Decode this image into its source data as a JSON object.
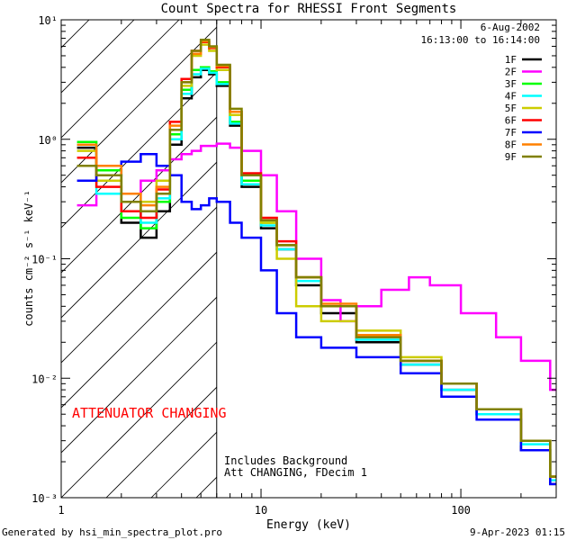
{
  "chart_data": {
    "type": "line",
    "title": "Count Spectra for RHESSI Front Segments",
    "xlabel": "Energy (keV)",
    "ylabel": "counts cm⁻² s⁻¹ keV⁻¹",
    "xscale": "log",
    "yscale": "log",
    "xlim": [
      1,
      300
    ],
    "ylim": [
      0.001,
      10
    ],
    "x_ticks": [
      {
        "value": 1,
        "label": "1"
      },
      {
        "value": 10,
        "label": "10"
      },
      {
        "value": 100,
        "label": "100"
      }
    ],
    "y_ticks": [
      {
        "value": 0.001,
        "label": "10⁻³"
      },
      {
        "value": 0.01,
        "label": "10⁻²"
      },
      {
        "value": 0.1,
        "label": "10⁻¹"
      },
      {
        "value": 1,
        "label": "10⁰"
      },
      {
        "value": 10,
        "label": "10¹"
      }
    ],
    "legend_header": [
      "6-Aug-2002",
      "16:13:00 to 16:14:00"
    ],
    "legend_position": "top-right",
    "attenuator_energy_keV": 6,
    "attenuator_label": "ATTENUATOR CHANGING",
    "annotations": [
      "Includes Background",
      "Att CHANGING, FDecim 1"
    ],
    "footer_left": "Generated by hsi_min_spectra_plot.pro",
    "footer_right": "9-Apr-2023 01:15",
    "series": [
      {
        "name": "1F",
        "color": "#000000",
        "x": [
          1.2,
          1.5,
          2,
          2.5,
          3,
          3.5,
          4,
          4.5,
          5,
          5.5,
          6,
          7,
          8,
          10,
          12,
          15,
          20,
          30,
          50,
          80,
          120,
          200,
          280
        ],
        "y": [
          0.85,
          0.5,
          0.2,
          0.15,
          0.25,
          0.9,
          2.2,
          3.3,
          3.8,
          3.5,
          2.8,
          1.3,
          0.4,
          0.18,
          0.12,
          0.06,
          0.035,
          0.02,
          0.013,
          0.008,
          0.005,
          0.0025,
          0.0013
        ]
      },
      {
        "name": "2F",
        "color": "#ff00ff",
        "x": [
          1.2,
          1.5,
          2,
          2.5,
          3,
          3.5,
          4,
          4.5,
          5,
          6,
          7,
          8,
          10,
          12,
          15,
          20,
          25,
          30,
          40,
          55,
          70,
          100,
          150,
          200,
          280
        ],
        "y": [
          0.28,
          0.35,
          0.35,
          0.45,
          0.55,
          0.68,
          0.75,
          0.8,
          0.88,
          0.92,
          0.85,
          0.8,
          0.5,
          0.25,
          0.1,
          0.045,
          0.03,
          0.04,
          0.055,
          0.07,
          0.06,
          0.035,
          0.022,
          0.014,
          0.008
        ]
      },
      {
        "name": "3F",
        "color": "#00ff00",
        "x": [
          1.2,
          1.5,
          2,
          2.5,
          3,
          3.5,
          4,
          4.5,
          5,
          5.5,
          6,
          7,
          8,
          10,
          12,
          15,
          20,
          30,
          50,
          80,
          120,
          200,
          280
        ],
        "y": [
          0.95,
          0.55,
          0.22,
          0.18,
          0.3,
          1.1,
          2.6,
          3.8,
          4.0,
          3.7,
          3.0,
          1.4,
          0.45,
          0.2,
          0.13,
          0.07,
          0.04,
          0.022,
          0.014,
          0.009,
          0.0055,
          0.003,
          0.0015
        ]
      },
      {
        "name": "4F",
        "color": "#00ffff",
        "x": [
          1.2,
          1.5,
          2,
          2.5,
          3,
          3.5,
          4,
          4.5,
          5,
          5.5,
          6,
          7,
          8,
          10,
          12,
          15,
          20,
          30,
          50,
          80,
          120,
          200,
          280
        ],
        "y": [
          0.9,
          0.35,
          0.25,
          0.2,
          0.32,
          1.0,
          2.4,
          3.5,
          3.9,
          3.6,
          2.9,
          1.35,
          0.42,
          0.19,
          0.12,
          0.065,
          0.04,
          0.021,
          0.013,
          0.008,
          0.005,
          0.0028,
          0.0014
        ]
      },
      {
        "name": "5F",
        "color": "#cccc00",
        "x": [
          1.2,
          1.5,
          2,
          2.5,
          3,
          3.5,
          4,
          4.5,
          5,
          5.5,
          6,
          7,
          8,
          10,
          12,
          15,
          20,
          30,
          50,
          80,
          120,
          200,
          280
        ],
        "y": [
          0.8,
          0.45,
          0.25,
          0.3,
          0.45,
          1.2,
          2.8,
          5.0,
          6.2,
          5.5,
          3.8,
          1.6,
          0.5,
          0.2,
          0.1,
          0.04,
          0.03,
          0.025,
          0.015,
          0.009,
          0.0055,
          0.003,
          0.0015
        ]
      },
      {
        "name": "6F",
        "color": "#ff0000",
        "x": [
          1.2,
          1.5,
          2,
          2.5,
          3,
          3.5,
          4,
          4.5,
          5,
          5.5,
          6,
          7,
          8,
          10,
          12,
          15,
          20,
          30,
          50,
          80,
          120,
          200,
          280
        ],
        "y": [
          0.7,
          0.4,
          0.25,
          0.22,
          0.38,
          1.4,
          3.2,
          5.5,
          6.5,
          5.8,
          4.0,
          1.7,
          0.52,
          0.22,
          0.14,
          0.07,
          0.04,
          0.022,
          0.014,
          0.009,
          0.0055,
          0.003,
          0.0015
        ]
      },
      {
        "name": "7F",
        "color": "#0000ff",
        "x": [
          1.2,
          1.5,
          2,
          2.5,
          3,
          3.5,
          4,
          4.5,
          5,
          5.5,
          6,
          7,
          8,
          10,
          12,
          15,
          20,
          30,
          50,
          80,
          120,
          200,
          280
        ],
        "y": [
          0.45,
          0.5,
          0.65,
          0.75,
          0.6,
          0.5,
          0.3,
          0.26,
          0.28,
          0.32,
          0.3,
          0.2,
          0.15,
          0.08,
          0.035,
          0.022,
          0.018,
          0.015,
          0.011,
          0.007,
          0.0045,
          0.0025,
          0.0013
        ]
      },
      {
        "name": "8F",
        "color": "#ff8000",
        "x": [
          1.2,
          1.5,
          2,
          2.5,
          3,
          3.5,
          4,
          4.5,
          5,
          5.5,
          6,
          7,
          8,
          10,
          12,
          15,
          20,
          30,
          50,
          80,
          120,
          200,
          280
        ],
        "y": [
          0.9,
          0.6,
          0.35,
          0.28,
          0.4,
          1.3,
          3.0,
          5.2,
          6.6,
          5.9,
          4.1,
          1.7,
          0.5,
          0.21,
          0.13,
          0.07,
          0.042,
          0.023,
          0.014,
          0.009,
          0.0055,
          0.003,
          0.0015
        ]
      },
      {
        "name": "9F",
        "color": "#808000",
        "x": [
          1.2,
          1.5,
          2,
          2.5,
          3,
          3.5,
          4,
          4.5,
          5,
          5.5,
          6,
          7,
          8,
          10,
          12,
          15,
          20,
          30,
          50,
          80,
          120,
          200,
          280
        ],
        "y": [
          0.6,
          0.5,
          0.3,
          0.25,
          0.35,
          1.2,
          3.0,
          5.5,
          6.8,
          6.0,
          4.2,
          1.8,
          0.5,
          0.21,
          0.13,
          0.07,
          0.04,
          0.022,
          0.014,
          0.009,
          0.0055,
          0.003,
          0.0015
        ]
      }
    ]
  }
}
